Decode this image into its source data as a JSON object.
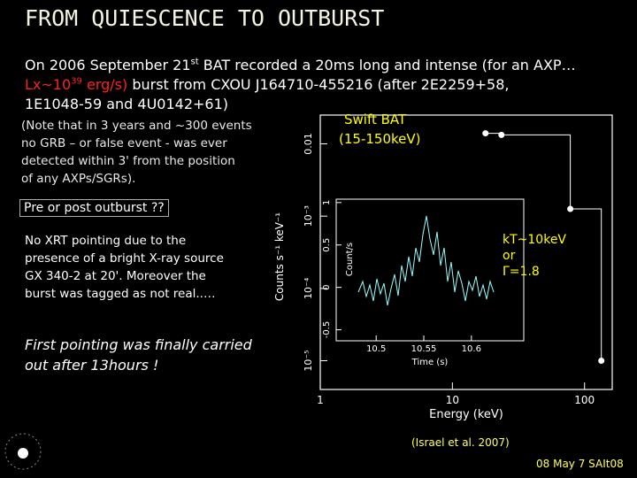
{
  "slide": {
    "title": "FROM QUIESCENCE TO OUTBURST",
    "intro": [
      "On 2006 September 21",
      "st",
      " BAT recorded a 20ms long and intense (for an AXP…",
      "Lx~10",
      "39",
      " erg/s)",
      " burst from CXOU J164710-455216 (after 2E2259+58,",
      "1E1048-59 and 4U0142+61)"
    ],
    "note": [
      "(Note that in 3 years and ~300 events",
      "no GRB – or false event - was ever",
      "detected within 3' from the position",
      "of any AXPs/SGRs)."
    ],
    "box": "Pre or post outburst ??",
    "xrt": [
      "No XRT pointing due to the",
      "presence of a bright X-ray source",
      "GX 340-2 at 20'. Moreover the",
      "burst was tagged as not real..…"
    ],
    "first": [
      "First pointing was finally carried",
      "out after 13hours !"
    ],
    "citation": "(Israel et al. 2007)",
    "footer": "08 May 7  SAIt08"
  },
  "chart_data": {
    "type": "scatter",
    "xlabel": "Energy (keV)",
    "ylabel": "Counts s⁻¹ keV⁻¹",
    "x": [
      17.8,
      23.5,
      78,
      134
    ],
    "series": [
      {
        "name": "BAT",
        "color": "#ffffff",
        "values": [
          0.014,
          0.0133,
          0.00126,
          1e-05
        ]
      }
    ],
    "xlim": [
      1,
      162
    ],
    "ylim": [
      4e-06,
      0.025
    ],
    "xscale": "log",
    "yscale": "log",
    "xticks": [
      1,
      10,
      100
    ],
    "yticks": [
      {
        "value": 0.01,
        "label": "0.01"
      },
      {
        "value": 0.001,
        "label": "10⁻³"
      },
      {
        "value": 0.0001,
        "label": "10⁻⁴"
      },
      {
        "value": 1e-05,
        "label": "10⁻⁵"
      }
    ],
    "annotations": [
      "Swift BAT",
      "(15-150keV)",
      "kT~10keV",
      "or",
      "Γ=1.8"
    ],
    "inset": {
      "xlabel": "Time (s)",
      "ylabel": "Count/s",
      "xlim": [
        10.458,
        10.655
      ],
      "ylim": [
        -0.63,
        1.04
      ],
      "xticks": [
        10.5,
        10.55,
        10.6
      ],
      "yticks": [
        -0.5,
        0,
        0.5,
        1
      ]
    }
  }
}
